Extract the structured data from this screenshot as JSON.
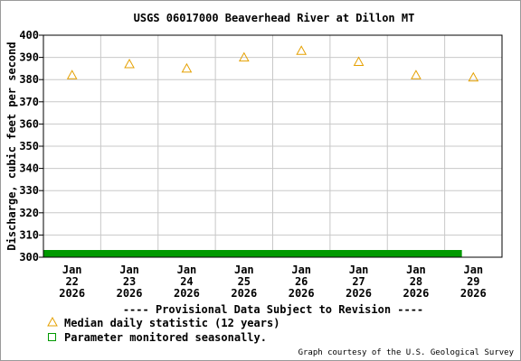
{
  "chart_data": {
    "type": "scatter",
    "title": "USGS 06017000 Beaverhead River at Dillon MT",
    "xlabel": "",
    "ylabel": "Discharge, cubic feet per second",
    "ylim": [
      300,
      400
    ],
    "yticks": [
      300,
      310,
      320,
      330,
      340,
      350,
      360,
      370,
      380,
      390,
      400
    ],
    "grid": true,
    "categories": [
      [
        "Jan",
        "22",
        "2026"
      ],
      [
        "Jan",
        "23",
        "2026"
      ],
      [
        "Jan",
        "24",
        "2026"
      ],
      [
        "Jan",
        "25",
        "2026"
      ],
      [
        "Jan",
        "26",
        "2026"
      ],
      [
        "Jan",
        "27",
        "2026"
      ],
      [
        "Jan",
        "28",
        "2026"
      ],
      [
        "Jan",
        "29",
        "2026"
      ]
    ],
    "series": [
      {
        "name": "Median daily statistic (12 years)",
        "marker": "triangle",
        "color": "#e5a000",
        "values": [
          382,
          387,
          385,
          390,
          393,
          388,
          382,
          381
        ]
      }
    ],
    "seasonal_bar": {
      "name": "Parameter monitored seasonally.",
      "marker": "square",
      "color": "#009900",
      "x_start": 0,
      "x_end": 7.3
    },
    "annotation": "---- Provisional Data Subject to Revision ----",
    "annotation_color": "#cc0000",
    "legend_position": "bottom-left",
    "credit": "Graph courtesy of the U.S. Geological Survey",
    "frame_color": "#000000",
    "grid_color": "#c8c8c8"
  }
}
